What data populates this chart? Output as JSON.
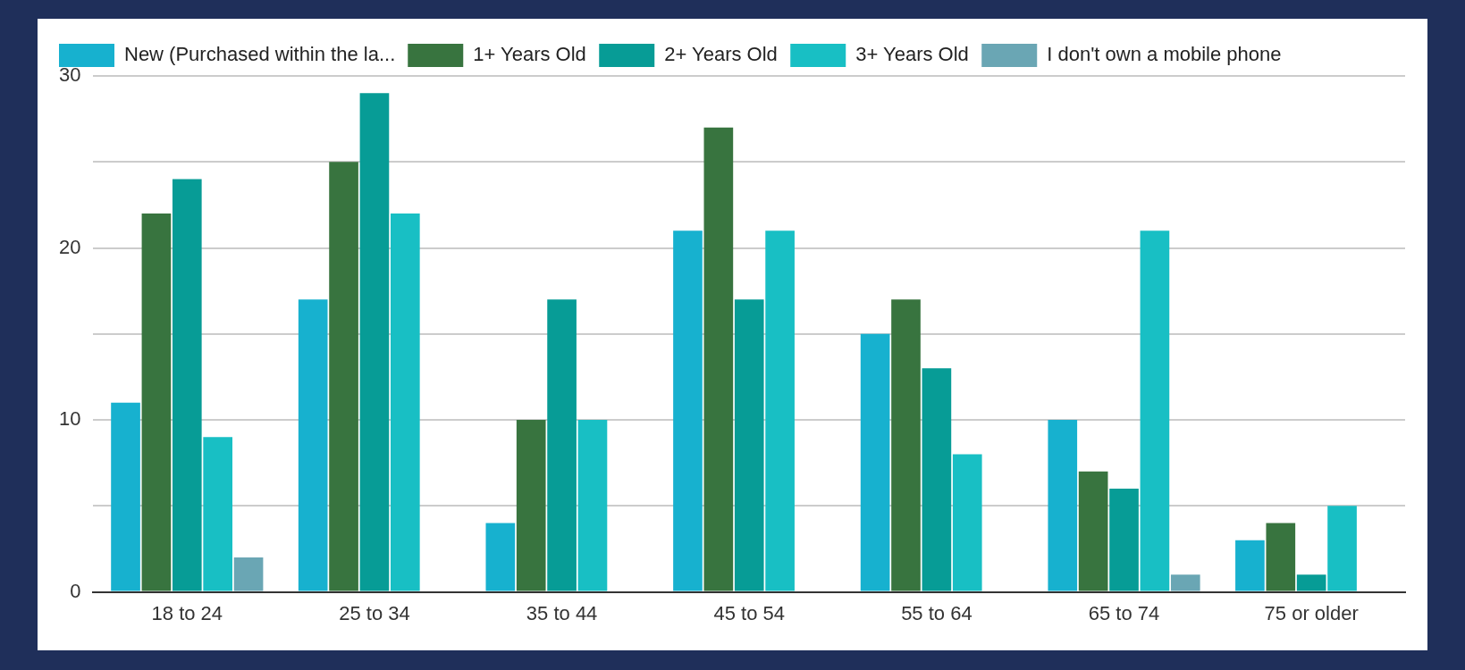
{
  "chart_data": {
    "type": "bar",
    "categories": [
      "18 to 24",
      "25 to 34",
      "35 to 44",
      "45 to 54",
      "55 to 64",
      "65 to 74",
      "75 or older"
    ],
    "series": [
      {
        "name": "New (Purchased within the la...",
        "color": "#17b1cf",
        "values": [
          11,
          17,
          4,
          21,
          15,
          10,
          3
        ]
      },
      {
        "name": "1+ Years Old",
        "color": "#38743f",
        "values": [
          22,
          25,
          10,
          27,
          17,
          7,
          4
        ]
      },
      {
        "name": "2+ Years Old",
        "color": "#079c96",
        "values": [
          24,
          29,
          17,
          17,
          13,
          6,
          1
        ]
      },
      {
        "name": "3+ Years Old",
        "color": "#18bfc4",
        "values": [
          9,
          22,
          10,
          21,
          8,
          21,
          5
        ]
      },
      {
        "name": "I don't own a mobile phone",
        "color": "#6aa6b4",
        "values": [
          2,
          0,
          0,
          0,
          0,
          1,
          0
        ]
      }
    ],
    "ylim": [
      0,
      30
    ],
    "yticks": [
      0,
      {
        "value": 5,
        "label": null
      },
      10,
      {
        "value": 15,
        "label": null
      },
      20,
      {
        "value": 25,
        "label": null
      },
      30
    ],
    "grid": "y",
    "legend": "top"
  }
}
